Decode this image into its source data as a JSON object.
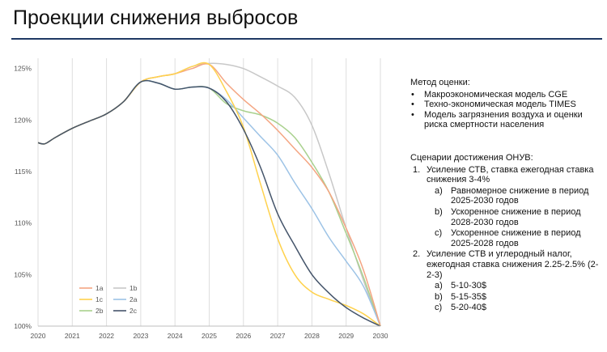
{
  "slide": {
    "title": "Проекции снижения выбросов"
  },
  "method": {
    "heading": "Метод оценки:",
    "items": [
      "Макроэкономическая модель CGE",
      "Техно-экономическая модель TIMES",
      "Модель загрязнения воздуха и оценки риска смертности населения"
    ]
  },
  "scenarios": {
    "heading": "Сценарии достижения ОНУВ:",
    "items": [
      {
        "marker": "1.",
        "text": "Усиление СТВ, ставка ежегодная ставка снижения 3-4%",
        "sub": [
          {
            "marker": "a)",
            "text": "Равномерное снижение в период 2025-2030 годов"
          },
          {
            "marker": "b)",
            "text": "Ускоренное снижение в период 2028-2030 годов"
          },
          {
            "marker": "c)",
            "text": "Ускоренное снижение в период 2025-2028 годов"
          }
        ]
      },
      {
        "marker": "2.",
        "text": "Усиление СТВ и углеродный налог, ежегодная ставка снижения 2.25-2.5% (2-2-3)",
        "sub": [
          {
            "marker": "a)",
            "text": "5-10-30$"
          },
          {
            "marker": "b)",
            "text": "5-15-35$"
          },
          {
            "marker": "c)",
            "text": "5-20-40$"
          }
        ]
      }
    ]
  },
  "chart_data": {
    "type": "line",
    "x_ticks": [
      "2020",
      "2021",
      "2022",
      "2023",
      "2024",
      "2025",
      "2026",
      "2027",
      "2028",
      "2029",
      "2030"
    ],
    "y_ticks": [
      "100%",
      "105%",
      "110%",
      "115%",
      "120%",
      "125%"
    ],
    "xlim": [
      2020,
      2030
    ],
    "ylim": [
      100,
      126
    ],
    "grid": "vertical",
    "legend_position": "bottom-left",
    "series": [
      {
        "name": "1a",
        "color": "#f4a582",
        "x": [
          2020,
          2020.2,
          2020.5,
          2021,
          2021.5,
          2022,
          2022.5,
          2023,
          2023.5,
          2024,
          2024.5,
          2025,
          2025.5,
          2026,
          2026.5,
          2027,
          2027.5,
          2028,
          2028.5,
          2029,
          2029.5,
          2030
        ],
        "y": [
          117.8,
          117.7,
          118.3,
          119.2,
          119.9,
          120.6,
          121.8,
          123.7,
          124.2,
          124.5,
          125.0,
          125.4,
          123.6,
          122.0,
          120.6,
          119.0,
          117.2,
          115.4,
          113.0,
          109.5,
          105.5,
          100.0
        ]
      },
      {
        "name": "1b",
        "color": "#c8c8c8",
        "x": [
          2020,
          2020.2,
          2020.5,
          2021,
          2021.5,
          2022,
          2022.5,
          2023,
          2023.5,
          2024,
          2024.5,
          2025,
          2025.5,
          2026,
          2026.5,
          2027,
          2027.5,
          2028,
          2028.5,
          2029,
          2029.5,
          2030
        ],
        "y": [
          117.8,
          117.7,
          118.3,
          119.2,
          119.9,
          120.6,
          121.8,
          123.7,
          124.2,
          124.5,
          125.2,
          125.5,
          125.4,
          125.0,
          124.2,
          123.3,
          122.2,
          119.5,
          114.8,
          109.5,
          104.5,
          100.0
        ]
      },
      {
        "name": "1c",
        "color": "#ffd24d",
        "x": [
          2020,
          2020.2,
          2020.5,
          2021,
          2021.5,
          2022,
          2022.5,
          2023,
          2023.5,
          2024,
          2024.5,
          2025,
          2025.5,
          2026,
          2026.5,
          2027,
          2027.5,
          2028,
          2028.5,
          2029,
          2029.5,
          2030
        ],
        "y": [
          117.8,
          117.7,
          118.3,
          119.2,
          119.9,
          120.6,
          121.8,
          123.7,
          124.2,
          124.5,
          125.2,
          125.4,
          122.8,
          119.3,
          113.8,
          108.5,
          105.0,
          103.3,
          102.6,
          102.0,
          101.2,
          100.0
        ]
      },
      {
        "name": "2a",
        "color": "#9dc3e6",
        "x": [
          2020,
          2020.2,
          2020.5,
          2021,
          2021.5,
          2022,
          2022.5,
          2023,
          2023.5,
          2024,
          2024.5,
          2025,
          2025.5,
          2026,
          2026.5,
          2027,
          2027.5,
          2028,
          2028.5,
          2029,
          2029.5,
          2030
        ],
        "y": [
          117.8,
          117.7,
          118.3,
          119.2,
          119.9,
          120.6,
          121.8,
          123.7,
          123.6,
          123.0,
          123.2,
          123.1,
          122.0,
          120.2,
          118.4,
          116.6,
          113.9,
          111.4,
          108.6,
          106.3,
          103.9,
          100.0
        ]
      },
      {
        "name": "2b",
        "color": "#a9d18e",
        "x": [
          2020,
          2020.2,
          2020.5,
          2021,
          2021.5,
          2022,
          2022.5,
          2023,
          2023.5,
          2024,
          2024.5,
          2025,
          2025.5,
          2026,
          2026.5,
          2027,
          2027.5,
          2028,
          2028.5,
          2029,
          2029.5,
          2030
        ],
        "y": [
          117.8,
          117.7,
          118.3,
          119.2,
          119.9,
          120.6,
          121.8,
          123.7,
          123.6,
          123.0,
          123.2,
          123.1,
          121.6,
          120.9,
          120.5,
          119.7,
          118.3,
          115.9,
          113.0,
          109.0,
          104.8,
          100.0
        ]
      },
      {
        "name": "2c",
        "color": "#44546a",
        "x": [
          2020,
          2020.2,
          2020.5,
          2021,
          2021.5,
          2022,
          2022.5,
          2023,
          2023.5,
          2024,
          2024.5,
          2025,
          2025.5,
          2026,
          2026.5,
          2027,
          2027.5,
          2028,
          2028.5,
          2029,
          2029.5,
          2030
        ],
        "y": [
          117.8,
          117.7,
          118.3,
          119.2,
          119.9,
          120.6,
          121.8,
          123.7,
          123.6,
          123.0,
          123.2,
          123.1,
          121.8,
          119.1,
          115.4,
          110.9,
          107.8,
          105.0,
          103.2,
          101.8,
          100.8,
          100.0
        ]
      }
    ]
  }
}
